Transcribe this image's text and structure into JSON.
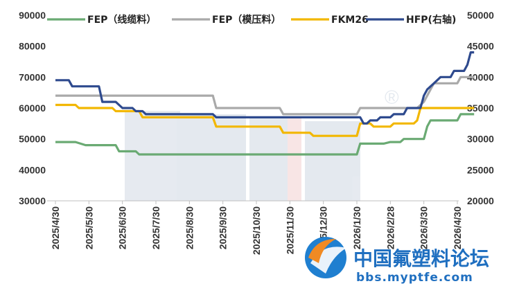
{
  "chart_data": {
    "type": "line",
    "x": [
      "2025/4/30",
      "2025/5/30",
      "2025/6/30",
      "2025/7/30",
      "2025/8/30",
      "2025/9/30",
      "2025/10/30",
      "2025/11/30",
      "2025/12/30",
      "2026/1/30",
      "2026/2/28",
      "2026/3/30",
      "2026/4/30"
    ],
    "y_left_range": [
      30000,
      90000
    ],
    "y_left_ticks": [
      "30000",
      "40000",
      "50000",
      "60000",
      "70000",
      "80000",
      "90000"
    ],
    "y_right_range": [
      20000,
      50000
    ],
    "y_right_ticks": [
      "20000",
      "25000",
      "30000",
      "35000",
      "40000",
      "45000",
      "50000"
    ],
    "grid": false,
    "legend_position": "top",
    "series": [
      {
        "name": "FEP（线缆料）",
        "axis": "left",
        "color": "#6aaa73",
        "points": [
          [
            0,
            49000
          ],
          [
            0.6,
            49000
          ],
          [
            0.9,
            48000
          ],
          [
            1.8,
            48000
          ],
          [
            1.9,
            46000
          ],
          [
            2.4,
            46000
          ],
          [
            2.5,
            45000
          ],
          [
            9.0,
            45000
          ],
          [
            9.1,
            48500
          ],
          [
            9.8,
            48500
          ],
          [
            10.0,
            49000
          ],
          [
            10.3,
            49000
          ],
          [
            10.4,
            50000
          ],
          [
            11.0,
            50000
          ],
          [
            11.1,
            54000
          ],
          [
            11.2,
            56000
          ],
          [
            12.0,
            56000
          ],
          [
            12.1,
            58000
          ],
          [
            12.5,
            58000
          ]
        ]
      },
      {
        "name": "FEP（模压料）",
        "axis": "left",
        "color": "#a9a9a9",
        "points": [
          [
            0,
            64000
          ],
          [
            4.7,
            64000
          ],
          [
            4.8,
            60000
          ],
          [
            6.7,
            60000
          ],
          [
            6.8,
            58000
          ],
          [
            9.0,
            58000
          ],
          [
            9.1,
            60000
          ],
          [
            10.8,
            60000
          ],
          [
            11.0,
            62000
          ],
          [
            11.2,
            66000
          ],
          [
            11.3,
            68000
          ],
          [
            12.0,
            68000
          ],
          [
            12.1,
            70000
          ],
          [
            12.5,
            70000
          ]
        ]
      },
      {
        "name": "FKM26",
        "axis": "left",
        "color": "#f2b700",
        "points": [
          [
            0,
            61000
          ],
          [
            0.6,
            61000
          ],
          [
            0.7,
            60000
          ],
          [
            1.7,
            60000
          ],
          [
            1.8,
            59000
          ],
          [
            2.5,
            59000
          ],
          [
            2.6,
            57000
          ],
          [
            4.7,
            57000
          ],
          [
            4.8,
            54000
          ],
          [
            6.7,
            54000
          ],
          [
            6.8,
            52000
          ],
          [
            7.6,
            52000
          ],
          [
            7.7,
            51000
          ],
          [
            9.0,
            51000
          ],
          [
            9.1,
            55000
          ],
          [
            9.4,
            55000
          ],
          [
            9.5,
            54000
          ],
          [
            10.0,
            54000
          ],
          [
            10.1,
            55000
          ],
          [
            10.7,
            55000
          ],
          [
            10.8,
            56000
          ],
          [
            10.9,
            60000
          ],
          [
            12.5,
            60000
          ]
        ]
      },
      {
        "name": "HFP(右轴)",
        "axis": "right",
        "color": "#2e4a8e",
        "points": [
          [
            0,
            39500
          ],
          [
            0.4,
            39500
          ],
          [
            0.5,
            38500
          ],
          [
            1.3,
            38500
          ],
          [
            1.4,
            36000
          ],
          [
            1.8,
            36000
          ],
          [
            1.9,
            35500
          ],
          [
            2.0,
            35000
          ],
          [
            2.3,
            35000
          ],
          [
            2.4,
            34500
          ],
          [
            2.6,
            34500
          ],
          [
            2.7,
            34000
          ],
          [
            4.7,
            34000
          ],
          [
            4.8,
            33500
          ],
          [
            9.1,
            33500
          ],
          [
            9.2,
            32500
          ],
          [
            9.3,
            32500
          ],
          [
            9.4,
            33000
          ],
          [
            9.6,
            33000
          ],
          [
            9.7,
            33500
          ],
          [
            10.0,
            33500
          ],
          [
            10.1,
            34000
          ],
          [
            10.4,
            34000
          ],
          [
            10.5,
            35000
          ],
          [
            10.9,
            35000
          ],
          [
            11.0,
            37000
          ],
          [
            11.1,
            38000
          ],
          [
            11.3,
            39000
          ],
          [
            11.4,
            39500
          ],
          [
            11.5,
            40000
          ],
          [
            11.8,
            40000
          ],
          [
            11.9,
            41000
          ],
          [
            12.2,
            41000
          ],
          [
            12.3,
            42000
          ],
          [
            12.35,
            43000
          ],
          [
            12.4,
            44000
          ],
          [
            12.5,
            44000
          ]
        ]
      }
    ]
  },
  "watermark": {
    "brand_cn": "中国氟塑料论坛",
    "url": "bbs.myptfe.com",
    "registered_mark": "®"
  }
}
